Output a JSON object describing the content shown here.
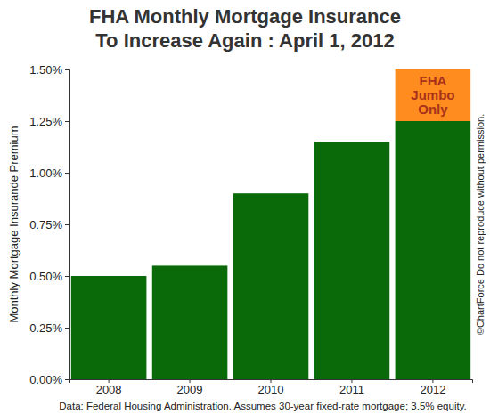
{
  "chart_data": {
    "type": "bar",
    "title": "FHA Monthly Mortgage Insurance\nTo Increase Again : April 1, 2012",
    "y_label": "Monthly Mortgage Insurande Premium",
    "source": "Data: Federal Housing Administration. Assumes 30-year fixed-rate mortgage; 3.5% equity.",
    "copyright": "©ChartForce  Do not reproduce without permission.",
    "categories": [
      "2008",
      "2009",
      "2010",
      "2011",
      "2012"
    ],
    "stacked": true,
    "series": [
      {
        "color": "#0a6a0a",
        "values": [
          0.5,
          0.55,
          0.9,
          1.15,
          1.25
        ]
      },
      {
        "name": "FHA Jumbo Only",
        "color": "#ff8c1e",
        "values": [
          null,
          null,
          null,
          null,
          0.25
        ]
      }
    ],
    "ylim": [
      0,
      1.5
    ],
    "yticks": [
      {
        "value": 0,
        "label": "0.00%"
      },
      {
        "value": 0.25,
        "label": "0.25%"
      },
      {
        "value": 0.5,
        "label": "0.50%"
      },
      {
        "value": 0.75,
        "label": "0.75%"
      },
      {
        "value": 1,
        "label": "1.00%"
      },
      {
        "value": 1.25,
        "label": "1.25%"
      },
      {
        "value": 1.5,
        "label": "1.50%"
      }
    ],
    "grid": false
  }
}
